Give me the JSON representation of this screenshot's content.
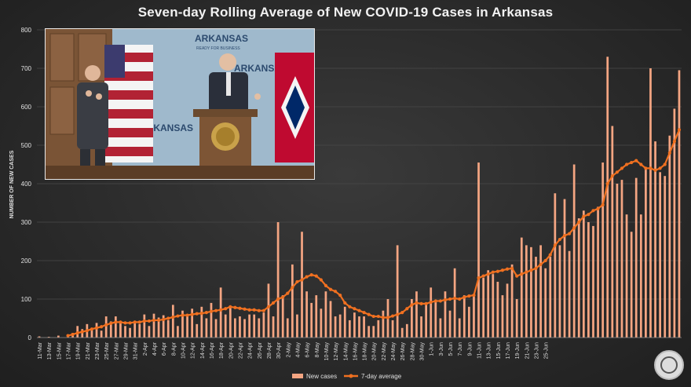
{
  "chart_data": {
    "type": "bar+line",
    "title": "Seven-day Rolling Average of New COVID-19 Cases in Arkansas",
    "ylabel": "NUMBER OF NEW CASES",
    "xlabel": "",
    "ylim": [
      0,
      800
    ],
    "yticks": [
      0,
      100,
      200,
      300,
      400,
      500,
      600,
      700,
      800
    ],
    "start_date": "11-Mar",
    "xtick_labels": [
      "11-Mar",
      "13-Mar",
      "15-Mar",
      "17-Mar",
      "19-Mar",
      "21-Mar",
      "23-Mar",
      "25-Mar",
      "27-Mar",
      "29-Mar",
      "31-Mar",
      "2-Apr",
      "4-Apr",
      "6-Apr",
      "8-Apr",
      "10-Apr",
      "12-Apr",
      "14-Apr",
      "16-Apr",
      "18-Apr",
      "20-Apr",
      "22-Apr",
      "24-Apr",
      "26-Apr",
      "28-Apr",
      "30-Apr",
      "2-May",
      "4-May",
      "6-May",
      "8-May",
      "10-May",
      "12-May",
      "14-May",
      "16-May",
      "18-May",
      "20-May",
      "22-May",
      "24-May",
      "26-May",
      "28-May",
      "30-May",
      "1-Jun",
      "3-Jun",
      "5-Jun",
      "7-Jun",
      "9-Jun",
      "11-Jun",
      "13-Jun",
      "15-Jun",
      "17-Jun",
      "19-Jun",
      "21-Jun",
      "23-Jun",
      "25-Jun"
    ],
    "series": [
      {
        "name": "New cases",
        "color": "#f4a582",
        "values": [
          3,
          0,
          2,
          0,
          5,
          0,
          4,
          12,
          30,
          22,
          35,
          25,
          38,
          18,
          55,
          42,
          55,
          40,
          30,
          25,
          42,
          35,
          60,
          30,
          62,
          52,
          58,
          45,
          85,
          30,
          70,
          55,
          75,
          35,
          80,
          50,
          90,
          48,
          130,
          60,
          80,
          50,
          55,
          48,
          60,
          60,
          50,
          65,
          140,
          55,
          300,
          110,
          50,
          190,
          60,
          275,
          120,
          90,
          110,
          75,
          120,
          95,
          55,
          60,
          80,
          45,
          65,
          55,
          55,
          30,
          30,
          45,
          70,
          100,
          45,
          240,
          25,
          35,
          100,
          120,
          55,
          90,
          130,
          95,
          50,
          120,
          70,
          180,
          50,
          110,
          80,
          110,
          455,
          155,
          175,
          165,
          145,
          110,
          140,
          190,
          100,
          260,
          240,
          235,
          210,
          240,
          180,
          210,
          375,
          240,
          360,
          225,
          450,
          310,
          330,
          300,
          290,
          340,
          455,
          730,
          550,
          400,
          410,
          320,
          275,
          415,
          320,
          440,
          700,
          510,
          430,
          420,
          525,
          595,
          695
        ]
      },
      {
        "name": "7-day average",
        "color": "#f07020",
        "values": [
          null,
          null,
          null,
          null,
          null,
          null,
          5,
          8,
          12,
          15,
          18,
          22,
          25,
          28,
          33,
          37,
          40,
          40,
          38,
          38,
          40,
          40,
          43,
          43,
          45,
          45,
          47,
          50,
          53,
          56,
          58,
          58,
          60,
          62,
          63,
          65,
          68,
          70,
          72,
          75,
          80,
          78,
          76,
          74,
          72,
          72,
          70,
          70,
          80,
          90,
          100,
          105,
          115,
          130,
          145,
          150,
          158,
          163,
          160,
          150,
          135,
          125,
          120,
          110,
          90,
          80,
          75,
          70,
          65,
          60,
          55,
          55,
          52,
          52,
          56,
          60,
          65,
          75,
          85,
          90,
          88,
          88,
          92,
          95,
          95,
          98,
          100,
          102,
          100,
          105,
          108,
          110,
          155,
          160,
          165,
          170,
          172,
          175,
          178,
          180,
          160,
          165,
          170,
          175,
          180,
          190,
          200,
          215,
          240,
          255,
          265,
          270,
          285,
          300,
          315,
          320,
          330,
          335,
          345,
          400,
          420,
          430,
          440,
          450,
          455,
          460,
          450,
          440,
          440,
          435,
          440,
          450,
          480,
          510,
          540
        ]
      }
    ],
    "legend": {
      "position": "bottom-center"
    }
  },
  "inset_photo": {
    "backdrop_text": [
      "ARKANSAS",
      "ARKANSAS",
      "ARKANSAS"
    ],
    "tagline": "READY FOR BUSINESS"
  }
}
